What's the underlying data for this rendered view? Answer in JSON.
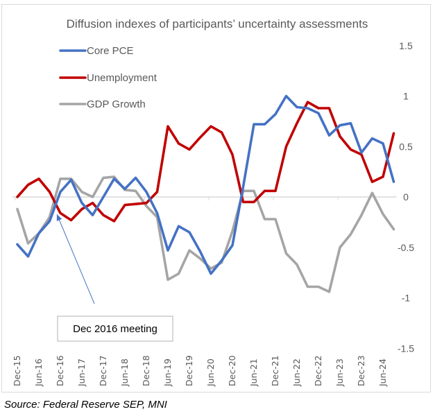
{
  "chart_data": {
    "type": "line",
    "title": "Diffusion indexes of participants’ uncertainty assessments",
    "xlabel": "",
    "ylabel": "",
    "ylim": [
      -1.5,
      1.5
    ],
    "yticks": [
      1.5,
      1,
      0.5,
      0,
      -0.5,
      -1,
      -1.5
    ],
    "ytick_labels": [
      "1.5",
      "1",
      "0.5",
      "0",
      "-0.5",
      "-1",
      "-1.5"
    ],
    "y_axis_side": "right",
    "grid": false,
    "legend_position": "top-left",
    "x": [
      "Dec-15",
      "Mar-16",
      "Jun-16",
      "Sep-16",
      "Dec-16",
      "Mar-17",
      "Jun-17",
      "Sep-17",
      "Dec-17",
      "Mar-18",
      "Jun-18",
      "Sep-18",
      "Dec-18",
      "Mar-19",
      "Jun-19",
      "Sep-19",
      "Dec-19",
      "Mar-20",
      "Jun-20",
      "Sep-20",
      "Dec-20",
      "Mar-21",
      "Jun-21",
      "Sep-21",
      "Dec-21",
      "Mar-22",
      "Jun-22",
      "Sep-22",
      "Dec-22",
      "Mar-23",
      "Jun-23",
      "Sep-23",
      "Dec-23",
      "Mar-24",
      "Jun-24",
      "Sep-24"
    ],
    "xtick_labels": [
      "Dec-15",
      "Jun-16",
      "Dec-16",
      "Jun-17",
      "Dec-17",
      "Jun-18",
      "Dec-18",
      "Jun-19",
      "Dec-19",
      "Jun-20",
      "Dec-20",
      "Jun-21",
      "Dec-21",
      "Jun-22",
      "Dec-22",
      "Jun-23",
      "Dec-23",
      "Jun-24"
    ],
    "series": [
      {
        "name": "Core PCE",
        "color": "#4472c4",
        "values": [
          -0.47,
          -0.59,
          -0.36,
          -0.24,
          0.05,
          0.17,
          -0.06,
          -0.18,
          0.0,
          0.18,
          0.08,
          0.19,
          0.05,
          -0.16,
          -0.53,
          -0.29,
          -0.35,
          -0.54,
          -0.76,
          -0.63,
          -0.48,
          0.1,
          0.72,
          0.72,
          0.82,
          1.0,
          0.89,
          0.88,
          0.83,
          0.61,
          0.71,
          0.73,
          0.44,
          0.58,
          0.53,
          0.15
        ]
      },
      {
        "name": "Unemployment",
        "color": "#c00000",
        "values": [
          0.0,
          0.12,
          0.18,
          0.05,
          -0.16,
          -0.23,
          -0.12,
          -0.06,
          -0.18,
          -0.24,
          -0.08,
          -0.07,
          -0.06,
          0.05,
          0.7,
          0.53,
          0.47,
          0.59,
          0.7,
          0.64,
          0.42,
          -0.05,
          -0.05,
          0.06,
          0.06,
          0.5,
          0.73,
          0.94,
          0.88,
          0.88,
          0.6,
          0.47,
          0.42,
          0.15,
          0.2,
          0.63
        ]
      },
      {
        "name": "GDP Growth",
        "color": "#a5a5a5",
        "values": [
          -0.12,
          -0.46,
          -0.36,
          -0.2,
          0.18,
          0.18,
          0.05,
          0.0,
          0.19,
          0.2,
          0.07,
          0.06,
          -0.09,
          -0.2,
          -0.82,
          -0.76,
          -0.53,
          -0.61,
          -0.71,
          -0.65,
          -0.34,
          0.06,
          0.06,
          -0.22,
          -0.22,
          -0.56,
          -0.67,
          -0.89,
          -0.89,
          -0.94,
          -0.5,
          -0.37,
          -0.18,
          0.04,
          -0.17,
          -0.32
        ]
      }
    ],
    "annotations": [
      {
        "text": "Dec 2016 meeting",
        "points_to": "Dec-16"
      }
    ]
  },
  "source": "Source: Federal Reserve SEP, MNI"
}
